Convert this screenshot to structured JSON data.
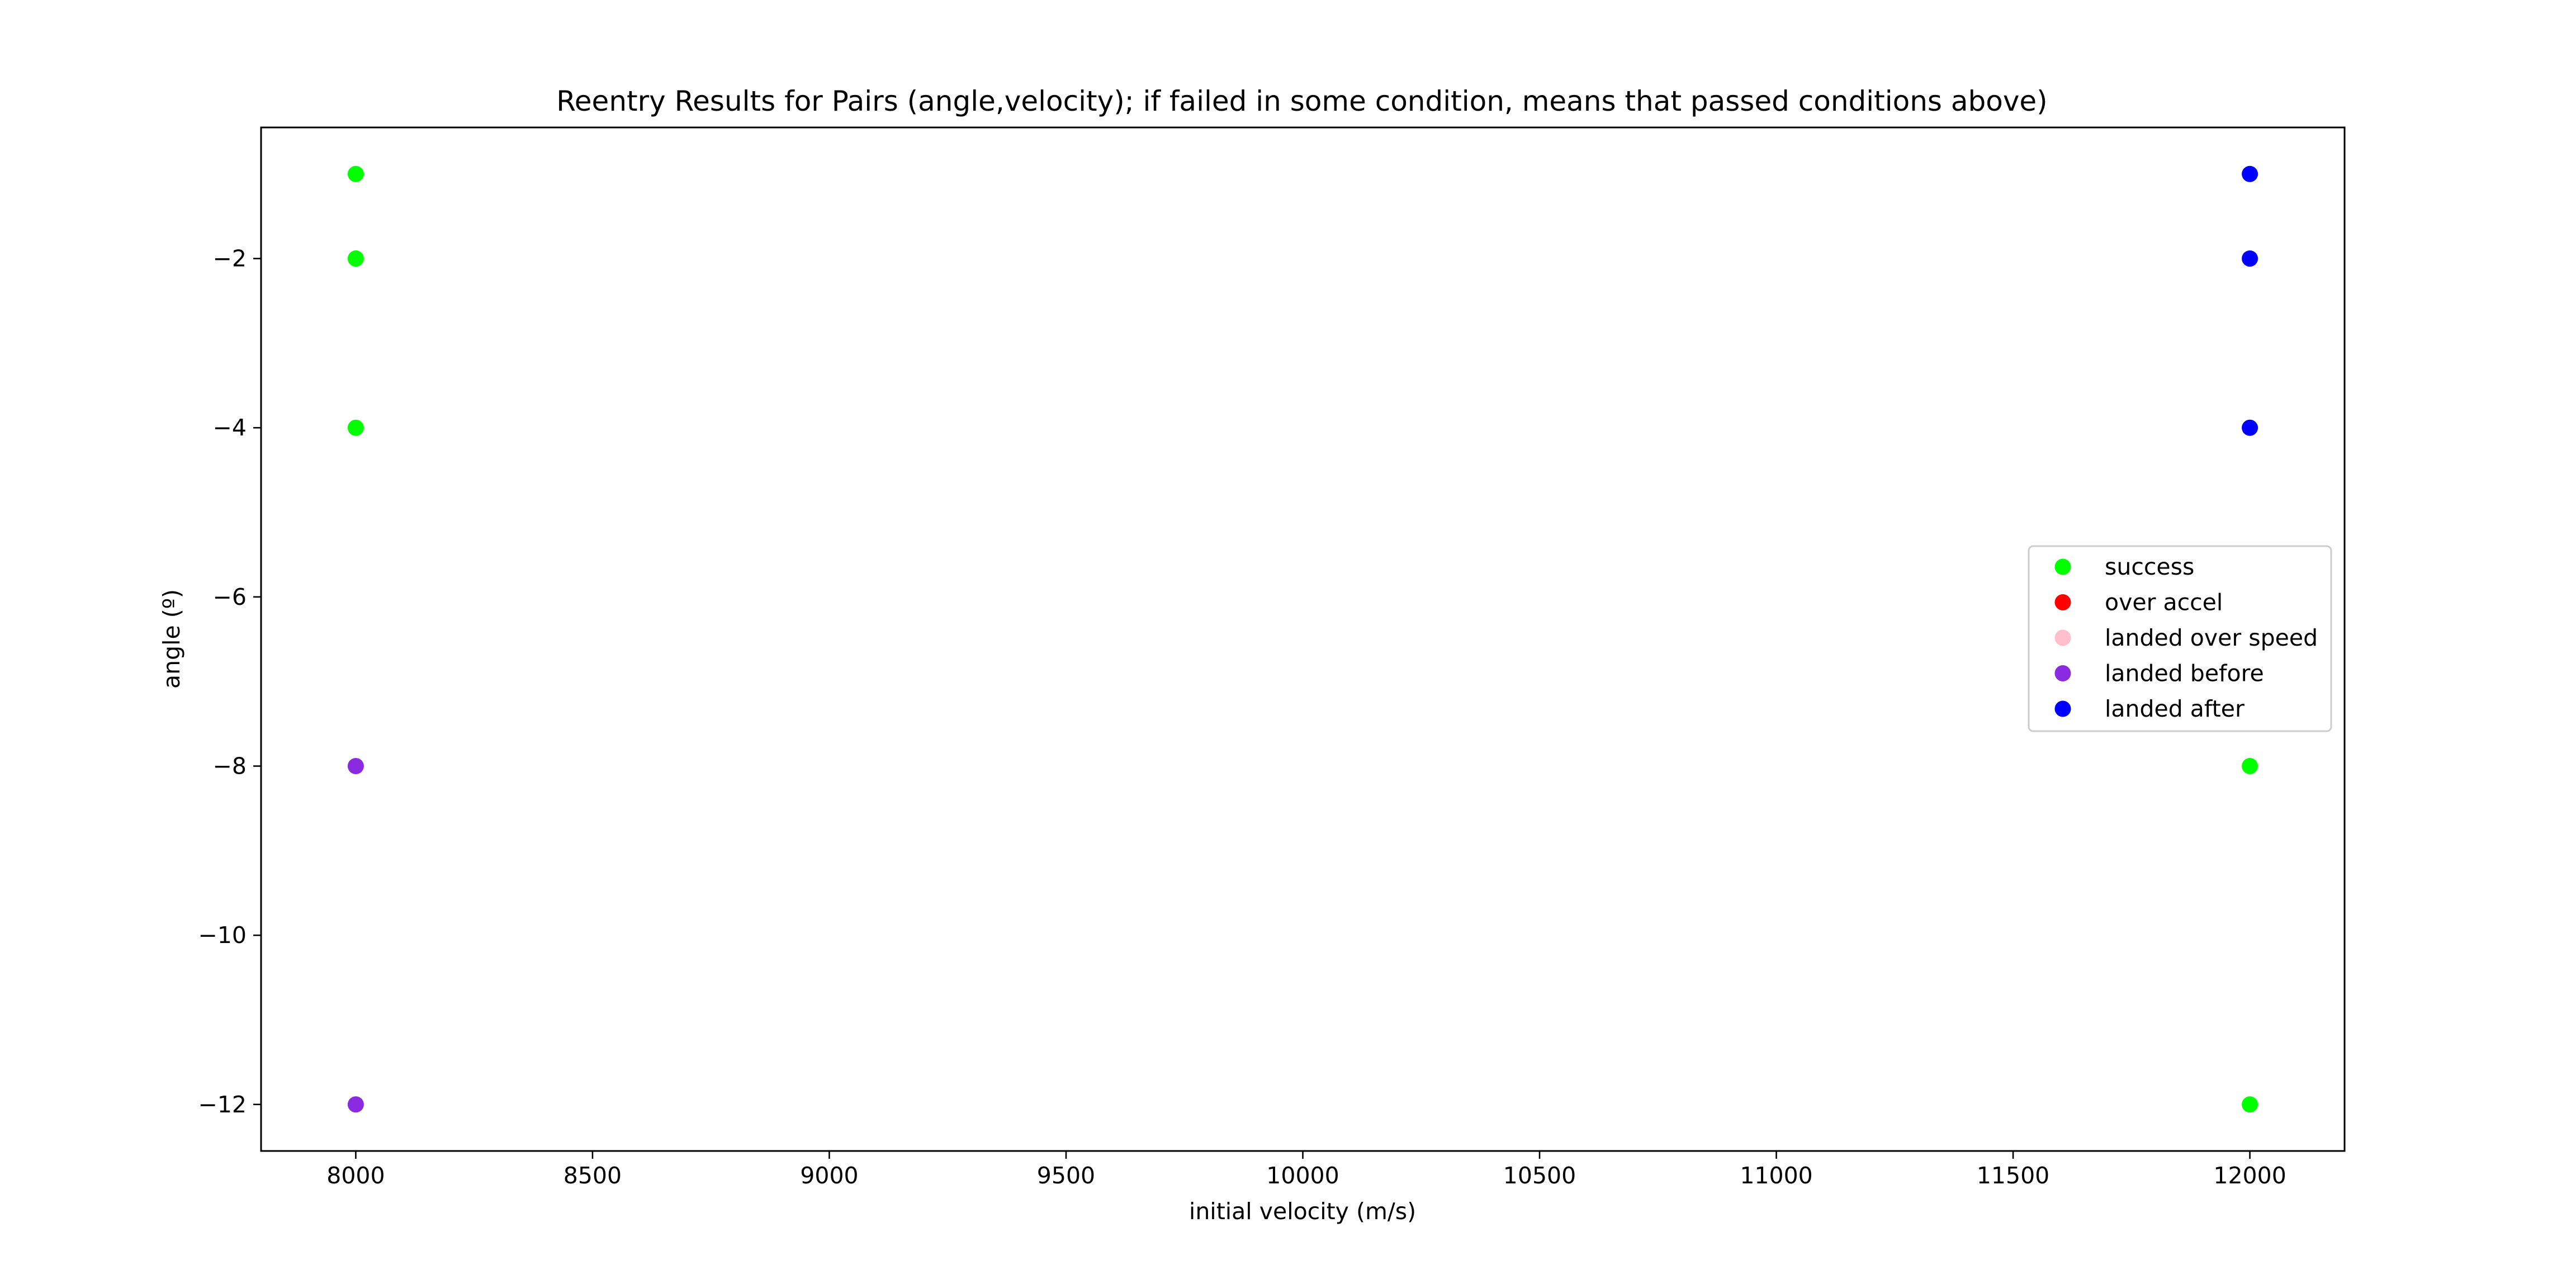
{
  "chart_data": {
    "type": "scatter",
    "title": "Reentry Results for Pairs (angle,velocity); if failed in some condition, means that passed conditions above)",
    "xlabel": "initial velocity (m/s)",
    "ylabel": "angle (º)",
    "xlim": [
      7800,
      12200
    ],
    "ylim": [
      -12.55,
      -0.45
    ],
    "xticks": [
      8000,
      8500,
      9000,
      9500,
      10000,
      10500,
      11000,
      11500,
      12000
    ],
    "yticks": [
      -2,
      -4,
      -6,
      -8,
      -10,
      -12
    ],
    "xtick_labels": [
      "8000",
      "8500",
      "9000",
      "9500",
      "10000",
      "10500",
      "11000",
      "11500",
      "12000"
    ],
    "ytick_labels": [
      "−2",
      "−4",
      "−6",
      "−8",
      "−10",
      "−12"
    ],
    "grid": false,
    "legend_position": "center-right",
    "series": [
      {
        "name": "success",
        "color": "#00ff00",
        "points": [
          {
            "x": 8000,
            "y": -1
          },
          {
            "x": 8000,
            "y": -2
          },
          {
            "x": 8000,
            "y": -4
          },
          {
            "x": 12000,
            "y": -8
          },
          {
            "x": 12000,
            "y": -12
          }
        ]
      },
      {
        "name": "over accel",
        "color": "#ff0000",
        "points": []
      },
      {
        "name": "landed over speed",
        "color": "#ffc0cb",
        "points": []
      },
      {
        "name": "landed before",
        "color": "#8a2be2",
        "points": [
          {
            "x": 8000,
            "y": -8
          },
          {
            "x": 8000,
            "y": -12
          }
        ]
      },
      {
        "name": "landed after",
        "color": "#0000ff",
        "points": [
          {
            "x": 12000,
            "y": -1
          },
          {
            "x": 12000,
            "y": -2
          },
          {
            "x": 12000,
            "y": -4
          }
        ]
      }
    ]
  }
}
